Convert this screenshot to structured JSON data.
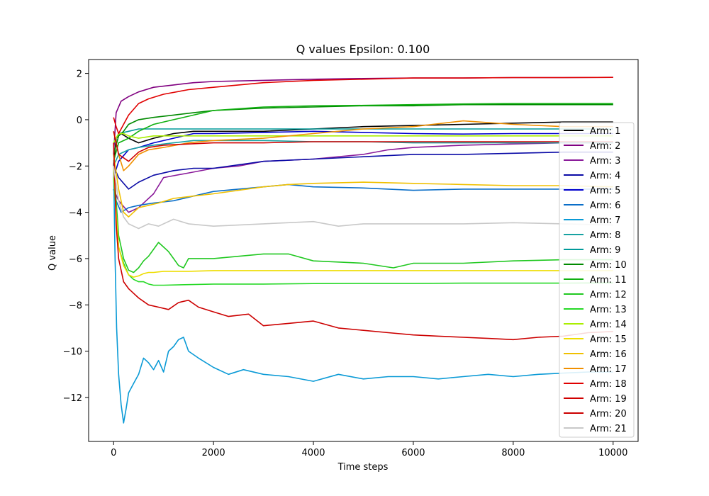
{
  "chart_data": {
    "type": "line",
    "title": "Q values Epsilon: 0.100",
    "xlabel": "Time steps",
    "ylabel": "Q value",
    "xlim": [
      -500,
      10500
    ],
    "ylim": [
      -13.9,
      2.6
    ],
    "xticks": [
      0,
      2000,
      4000,
      6000,
      8000,
      10000
    ],
    "yticks": [
      -12,
      -10,
      -8,
      -6,
      -4,
      -2,
      0,
      2
    ],
    "grid": false,
    "legend_position": "right",
    "series": [
      {
        "name": "Arm: 1",
        "color": "#000000",
        "x": [
          0,
          50,
          150,
          300,
          500,
          800,
          1200,
          1600,
          2000,
          3000,
          4000,
          5000,
          6000,
          7000,
          8000,
          9000,
          10000
        ],
        "y": [
          -2.0,
          -0.8,
          -0.6,
          -0.8,
          -1.0,
          -0.8,
          -0.6,
          -0.5,
          -0.5,
          -0.5,
          -0.4,
          -0.3,
          -0.25,
          -0.2,
          -0.15,
          -0.1,
          -0.1
        ]
      },
      {
        "name": "Arm: 2",
        "color": "#800080",
        "x": [
          0,
          50,
          150,
          300,
          500,
          800,
          1200,
          1600,
          2000,
          3000,
          4000,
          5000,
          6000,
          7000,
          8000,
          9000,
          10000
        ],
        "y": [
          -1.5,
          0.3,
          0.8,
          1.0,
          1.2,
          1.4,
          1.5,
          1.6,
          1.65,
          1.7,
          1.75,
          1.78,
          1.8,
          1.8,
          1.82,
          1.82,
          1.83
        ]
      },
      {
        "name": "Arm: 3",
        "color": "#8a1a9a",
        "x": [
          0,
          100,
          300,
          500,
          800,
          1000,
          1500,
          2000,
          2500,
          3000,
          4000,
          5000,
          5500,
          6000,
          7000,
          8000,
          9000,
          10000
        ],
        "y": [
          -3.0,
          -3.5,
          -4.0,
          -3.8,
          -3.2,
          -2.5,
          -2.3,
          -2.1,
          -2.0,
          -1.8,
          -1.7,
          -1.5,
          -1.3,
          -1.2,
          -1.1,
          -1.05,
          -1.0,
          -1.0
        ]
      },
      {
        "name": "Arm: 4",
        "color": "#0a0aa6",
        "x": [
          0,
          100,
          300,
          500,
          800,
          1200,
          1600,
          2000,
          3000,
          4000,
          5000,
          6000,
          7000,
          8000,
          9000,
          10000
        ],
        "y": [
          -2.0,
          -2.5,
          -3.0,
          -2.7,
          -2.4,
          -2.2,
          -2.1,
          -2.1,
          -1.8,
          -1.7,
          -1.6,
          -1.5,
          -1.5,
          -1.45,
          -1.4,
          -1.4
        ]
      },
      {
        "name": "Arm: 5",
        "color": "#0000cc",
        "x": [
          0,
          100,
          300,
          500,
          800,
          1200,
          1600,
          2000,
          3000,
          4000,
          5000,
          6000,
          7000,
          8000,
          9000,
          10000
        ],
        "y": [
          -2.5,
          -1.8,
          -1.3,
          -1.2,
          -1.0,
          -0.8,
          -0.6,
          -0.6,
          -0.55,
          -0.5,
          -0.55,
          -0.6,
          -0.62,
          -0.6,
          -0.6,
          -0.6
        ]
      },
      {
        "name": "Arm: 6",
        "color": "#0a6ec8",
        "x": [
          0,
          50,
          150,
          300,
          500,
          800,
          1200,
          1600,
          2000,
          3000,
          3500,
          4000,
          5000,
          6000,
          7000,
          8000,
          9000,
          10000
        ],
        "y": [
          -3.0,
          -3.5,
          -4.0,
          -3.8,
          -3.7,
          -3.6,
          -3.5,
          -3.3,
          -3.1,
          -2.9,
          -2.8,
          -2.9,
          -2.95,
          -3.05,
          -3.0,
          -3.0,
          -3.0,
          -3.0
        ]
      },
      {
        "name": "Arm: 7",
        "color": "#0a9ad6",
        "x": [
          0,
          30,
          60,
          100,
          150,
          200,
          250,
          300,
          400,
          500,
          600,
          700,
          800,
          900,
          1000,
          1100,
          1200,
          1300,
          1400,
          1500,
          1700,
          2000,
          2300,
          2600,
          3000,
          3500,
          4000,
          4500,
          5000,
          5500,
          6000,
          6500,
          7000,
          7500,
          8000,
          8500,
          9000,
          9500,
          10000
        ],
        "y": [
          -2.0,
          -6.0,
          -9.0,
          -11.0,
          -12.3,
          -13.1,
          -12.5,
          -11.8,
          -11.4,
          -11.0,
          -10.3,
          -10.5,
          -10.8,
          -10.4,
          -10.9,
          -10.0,
          -9.8,
          -9.5,
          -9.4,
          -10.0,
          -10.3,
          -10.7,
          -11.0,
          -10.8,
          -11.0,
          -11.1,
          -11.3,
          -11.0,
          -11.2,
          -11.1,
          -11.1,
          -11.2,
          -11.1,
          -11.0,
          -11.1,
          -11.0,
          -10.95,
          -10.9,
          -10.9
        ]
      },
      {
        "name": "Arm: 8",
        "color": "#17a2a2",
        "x": [
          0,
          100,
          300,
          500,
          800,
          1200,
          1600,
          2000,
          3000,
          4000,
          5000,
          6000,
          7000,
          8000,
          9000,
          10000
        ],
        "y": [
          -2.0,
          -1.5,
          -1.3,
          -1.2,
          -1.1,
          -1.0,
          -0.9,
          -0.9,
          -0.9,
          -0.95,
          -0.95,
          -1.0,
          -1.0,
          -1.0,
          -1.0,
          -1.0
        ]
      },
      {
        "name": "Arm: 9",
        "color": "#009a9a",
        "x": [
          0,
          100,
          300,
          500,
          800,
          1200,
          1600,
          2000,
          3000,
          4000,
          5000,
          6000,
          7000,
          8000,
          9000,
          10000
        ],
        "y": [
          -1.0,
          -0.6,
          -0.5,
          -0.4,
          -0.4,
          -0.4,
          -0.4,
          -0.4,
          -0.4,
          -0.4,
          -0.4,
          -0.4,
          -0.4,
          -0.4,
          -0.4,
          -0.4
        ]
      },
      {
        "name": "Arm: 10",
        "color": "#008a00",
        "x": [
          0,
          100,
          200,
          300,
          500,
          800,
          1200,
          1600,
          2000,
          3000,
          4000,
          5000,
          6000,
          7000,
          8000,
          9000,
          10000
        ],
        "y": [
          -1.5,
          -0.7,
          -0.5,
          -0.2,
          0.0,
          0.1,
          0.2,
          0.3,
          0.4,
          0.5,
          0.55,
          0.6,
          0.6,
          0.65,
          0.65,
          0.65,
          0.65
        ]
      },
      {
        "name": "Arm: 11",
        "color": "#10b010",
        "x": [
          0,
          100,
          300,
          500,
          800,
          1200,
          1600,
          2000,
          3000,
          4000,
          5000,
          6000,
          7000,
          8000,
          9000,
          10000
        ],
        "y": [
          -1.8,
          -1.0,
          -0.8,
          -0.5,
          -0.2,
          0.0,
          0.2,
          0.4,
          0.55,
          0.6,
          0.62,
          0.65,
          0.68,
          0.7,
          0.7,
          0.7
        ]
      },
      {
        "name": "Arm: 12",
        "color": "#20c820",
        "x": [
          0,
          50,
          100,
          200,
          300,
          400,
          500,
          600,
          700,
          800,
          900,
          1000,
          1100,
          1200,
          1300,
          1400,
          1500,
          2000,
          3000,
          3500,
          4000,
          5000,
          5600,
          6000,
          7000,
          8000,
          9000,
          10000
        ],
        "y": [
          -2.0,
          -3.5,
          -5.0,
          -6.0,
          -6.5,
          -6.6,
          -6.4,
          -6.1,
          -5.9,
          -5.6,
          -5.3,
          -5.5,
          -5.7,
          -6.0,
          -6.3,
          -6.4,
          -6.0,
          -6.0,
          -5.8,
          -5.8,
          -6.1,
          -6.2,
          -6.4,
          -6.2,
          -6.2,
          -6.1,
          -6.05,
          -6.05
        ]
      },
      {
        "name": "Arm: 13",
        "color": "#26d926",
        "x": [
          0,
          50,
          100,
          200,
          300,
          400,
          500,
          600,
          700,
          800,
          1000,
          2000,
          3000,
          4000,
          5000,
          6000,
          7000,
          8000,
          9000,
          10000
        ],
        "y": [
          -2.5,
          -4.0,
          -5.5,
          -6.2,
          -6.7,
          -6.9,
          -7.0,
          -7.0,
          -7.1,
          -7.15,
          -7.15,
          -7.1,
          -7.1,
          -7.08,
          -7.07,
          -7.07,
          -7.06,
          -7.06,
          -7.06,
          -7.05
        ]
      },
      {
        "name": "Arm: 14",
        "color": "#aaee00",
        "x": [
          0,
          100,
          200,
          300,
          500,
          800,
          1200,
          1600,
          2000,
          3000,
          4000,
          5000,
          6000,
          7000,
          8000,
          9000,
          10000
        ],
        "y": [
          -1.0,
          -0.6,
          -0.6,
          -0.7,
          -0.8,
          -0.7,
          -0.7,
          -0.7,
          -0.7,
          -0.7,
          -0.7,
          -0.7,
          -0.7,
          -0.7,
          -0.7,
          -0.7,
          -0.7
        ]
      },
      {
        "name": "Arm: 15",
        "color": "#eedd00",
        "x": [
          0,
          50,
          100,
          200,
          300,
          400,
          500,
          600,
          700,
          800,
          1000,
          1500,
          2000,
          3000,
          4000,
          5000,
          6000,
          7000,
          8000,
          9000,
          10000
        ],
        "y": [
          -2.0,
          -4.0,
          -5.5,
          -6.3,
          -6.7,
          -6.8,
          -6.75,
          -6.65,
          -6.6,
          -6.6,
          -6.55,
          -6.55,
          -6.52,
          -6.52,
          -6.52,
          -6.52,
          -6.52,
          -6.52,
          -6.52,
          -6.52,
          -6.52
        ]
      },
      {
        "name": "Arm: 16",
        "color": "#f0c000",
        "x": [
          0,
          100,
          200,
          300,
          400,
          500,
          700,
          900,
          1200,
          1600,
          2000,
          3000,
          3500,
          4000,
          5000,
          6000,
          7000,
          8000,
          9000,
          10000
        ],
        "y": [
          -1.5,
          -3.0,
          -4.0,
          -4.2,
          -4.0,
          -3.8,
          -3.7,
          -3.6,
          -3.4,
          -3.3,
          -3.2,
          -2.9,
          -2.8,
          -2.75,
          -2.7,
          -2.75,
          -2.8,
          -2.85,
          -2.85,
          -2.9
        ]
      },
      {
        "name": "Arm: 17",
        "color": "#f09000",
        "x": [
          0,
          100,
          200,
          300,
          500,
          700,
          1000,
          1500,
          2000,
          2500,
          3000,
          4000,
          5000,
          6000,
          7000,
          8000,
          9000,
          10000
        ],
        "y": [
          -0.5,
          -1.5,
          -2.2,
          -2.0,
          -1.5,
          -1.3,
          -1.2,
          -1.0,
          -0.9,
          -0.85,
          -0.8,
          -0.6,
          -0.4,
          -0.3,
          -0.05,
          -0.2,
          -0.3,
          -0.3
        ]
      },
      {
        "name": "Arm: 18",
        "color": "#e00000",
        "x": [
          0,
          50,
          100,
          200,
          300,
          500,
          700,
          1000,
          1500,
          2000,
          3000,
          4000,
          5000,
          6000,
          7000,
          8000,
          9000,
          10000
        ],
        "y": [
          0.1,
          -0.3,
          -0.6,
          -0.2,
          0.2,
          0.7,
          0.9,
          1.1,
          1.3,
          1.4,
          1.6,
          1.7,
          1.75,
          1.8,
          1.8,
          1.82,
          1.82,
          1.83
        ]
      },
      {
        "name": "Arm: 19",
        "color": "#d00000",
        "x": [
          0,
          100,
          300,
          500,
          700,
          1000,
          1500,
          2000,
          3000,
          4000,
          5000,
          6000,
          7000,
          8000,
          9000,
          10000
        ],
        "y": [
          -0.5,
          -1.5,
          -1.8,
          -1.4,
          -1.2,
          -1.1,
          -1.05,
          -1.0,
          -1.0,
          -0.95,
          -0.95,
          -0.95,
          -0.95,
          -0.95,
          -0.95,
          -0.95
        ]
      },
      {
        "name": "Arm: 20",
        "color": "#cc0000",
        "x": [
          0,
          50,
          100,
          200,
          300,
          400,
          500,
          700,
          900,
          1100,
          1300,
          1500,
          1700,
          2000,
          2300,
          2700,
          3000,
          3500,
          4000,
          4500,
          5000,
          5500,
          6000,
          6500,
          7000,
          7500,
          8000,
          8500,
          9000,
          9500,
          10000
        ],
        "y": [
          -1.0,
          -4.5,
          -6.0,
          -7.0,
          -7.3,
          -7.5,
          -7.7,
          -8.0,
          -8.1,
          -8.2,
          -7.9,
          -7.8,
          -8.1,
          -8.3,
          -8.5,
          -8.4,
          -8.9,
          -8.8,
          -8.7,
          -9.0,
          -9.1,
          -9.2,
          -9.3,
          -9.35,
          -9.4,
          -9.45,
          -9.5,
          -9.4,
          -9.35,
          -9.2,
          -9.15
        ]
      },
      {
        "name": "Arm: 21",
        "color": "#c8c8c8",
        "x": [
          0,
          100,
          200,
          300,
          400,
          500,
          700,
          900,
          1200,
          1500,
          2000,
          3000,
          4000,
          4500,
          5000,
          6000,
          7000,
          8000,
          9000,
          10000
        ],
        "y": [
          -2.0,
          -3.5,
          -4.2,
          -4.5,
          -4.6,
          -4.7,
          -4.5,
          -4.6,
          -4.3,
          -4.5,
          -4.6,
          -4.5,
          -4.4,
          -4.6,
          -4.5,
          -4.5,
          -4.5,
          -4.45,
          -4.5,
          -4.55
        ]
      }
    ]
  }
}
